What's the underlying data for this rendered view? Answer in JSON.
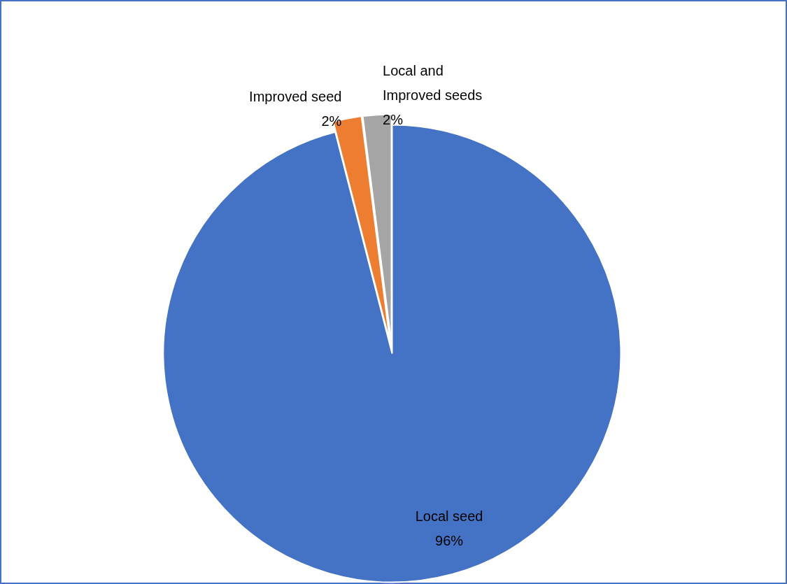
{
  "chart_data": {
    "type": "pie",
    "categories": [
      "Local seed",
      "Improved seed",
      "Local and Improved seeds"
    ],
    "values": [
      96,
      2,
      2
    ],
    "colors": [
      "#4472c4",
      "#ed7d31",
      "#a5a5a5"
    ],
    "value_labels": [
      "96%",
      "2%",
      "2%"
    ]
  }
}
